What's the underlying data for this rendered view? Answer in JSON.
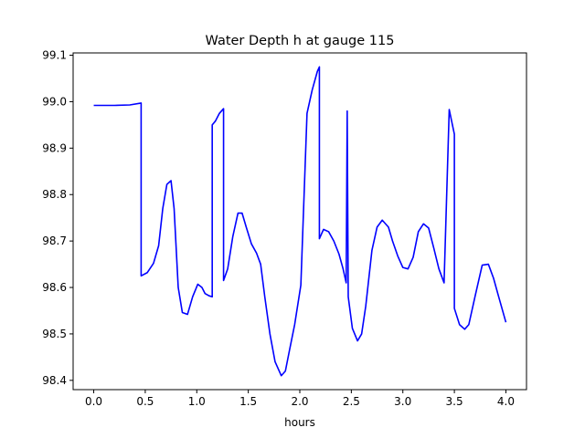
{
  "chart_data": {
    "type": "line",
    "title": "Water Depth h at gauge 115",
    "xlabel": "hours",
    "ylabel": "",
    "xlim": [
      -0.2,
      4.2
    ],
    "ylim": [
      98.38,
      99.105
    ],
    "grid": false,
    "xticks": [
      0.0,
      0.5,
      1.0,
      1.5,
      2.0,
      2.5,
      3.0,
      3.5,
      4.0
    ],
    "xtick_labels": [
      "0.0",
      "0.5",
      "1.0",
      "1.5",
      "2.0",
      "2.5",
      "3.0",
      "3.5",
      "4.0"
    ],
    "yticks": [
      98.4,
      98.5,
      98.6,
      98.7,
      98.8,
      98.9,
      99.0,
      99.1
    ],
    "ytick_labels": [
      "98.4",
      "98.5",
      "98.6",
      "98.7",
      "98.8",
      "98.9",
      "99.0",
      "99.1"
    ],
    "series": [
      {
        "color": "#0000ff",
        "x": [
          0.0,
          0.2,
          0.35,
          0.46,
          0.46,
          0.52,
          0.58,
          0.63,
          0.67,
          0.71,
          0.75,
          0.78,
          0.82,
          0.86,
          0.91,
          0.96,
          1.01,
          1.05,
          1.08,
          1.12,
          1.15,
          1.15,
          1.18,
          1.22,
          1.26,
          1.26,
          1.3,
          1.35,
          1.4,
          1.44,
          1.48,
          1.53,
          1.58,
          1.62,
          1.66,
          1.71,
          1.76,
          1.82,
          1.86,
          1.9,
          1.95,
          2.01,
          2.07,
          2.07,
          2.12,
          2.17,
          2.19,
          2.19,
          2.23,
          2.28,
          2.33,
          2.38,
          2.42,
          2.45,
          2.46,
          2.46,
          2.47,
          2.47,
          2.51,
          2.56,
          2.6,
          2.64,
          2.7,
          2.75,
          2.8,
          2.86,
          2.9,
          2.95,
          3.0,
          3.05,
          3.1,
          3.15,
          3.2,
          3.25,
          3.3,
          3.35,
          3.4,
          3.45,
          3.45,
          3.5,
          3.5,
          3.55,
          3.6,
          3.64,
          3.7,
          3.77,
          3.83,
          3.88,
          3.93,
          4.0
        ],
        "y": [
          98.992,
          98.992,
          98.993,
          98.997,
          98.625,
          98.632,
          98.652,
          98.69,
          98.77,
          98.822,
          98.83,
          98.77,
          98.6,
          98.546,
          98.542,
          98.58,
          98.607,
          98.6,
          98.587,
          98.582,
          98.58,
          98.95,
          98.958,
          98.975,
          98.985,
          98.615,
          98.64,
          98.71,
          98.76,
          98.76,
          98.73,
          98.694,
          98.674,
          98.65,
          98.58,
          98.5,
          98.44,
          98.41,
          98.42,
          98.465,
          98.52,
          98.605,
          98.975,
          98.975,
          99.025,
          99.065,
          99.075,
          98.705,
          98.725,
          98.72,
          98.7,
          98.672,
          98.64,
          98.61,
          98.98,
          98.97,
          98.58,
          98.58,
          98.512,
          98.485,
          98.5,
          98.56,
          98.68,
          98.73,
          98.745,
          98.73,
          98.7,
          98.668,
          98.643,
          98.64,
          98.665,
          98.72,
          98.737,
          98.728,
          98.685,
          98.64,
          98.61,
          98.983,
          98.983,
          98.93,
          98.555,
          98.52,
          98.51,
          98.52,
          98.58,
          98.648,
          98.65,
          98.62,
          98.58,
          98.525
        ]
      }
    ]
  }
}
